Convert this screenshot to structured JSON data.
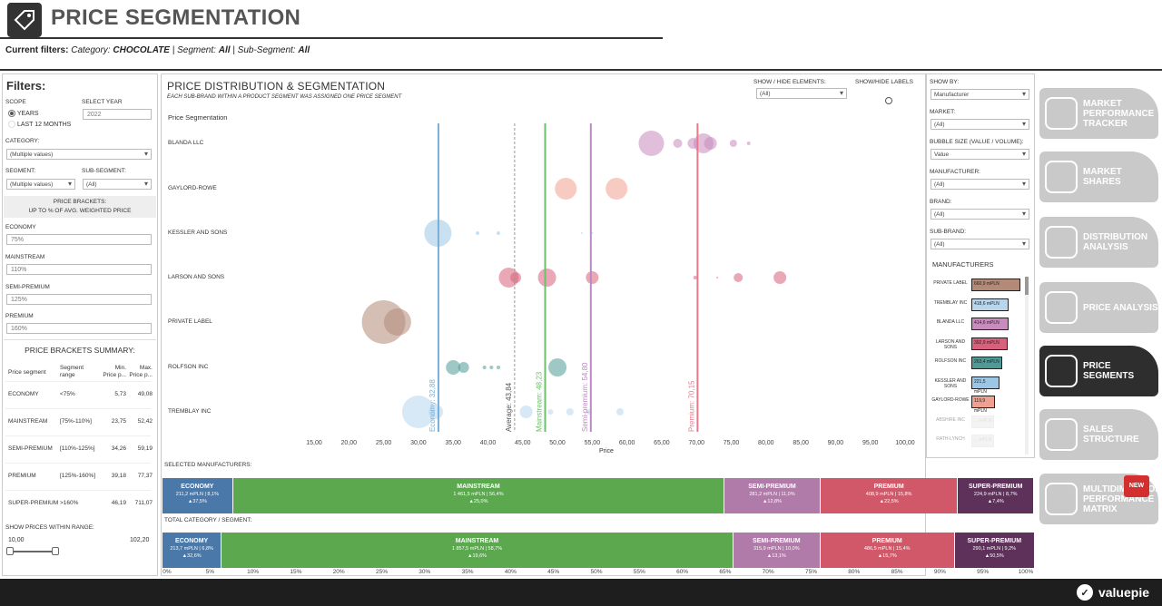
{
  "header": {
    "title": "PRICE SEGMENTATION",
    "filters_prefix": "Current filters:",
    "cat_label": " Category: ",
    "cat_value": "CHOCOLATE",
    "seg_label": " | Segment: ",
    "seg_value": "All",
    "subseg_label": " | Sub-Segment: ",
    "subseg_value": "All"
  },
  "left": {
    "heading": "Filters:",
    "scope_label": "SCOPE",
    "scope_years": "YEARS",
    "scope_l12": "LAST 12 MONTHS",
    "year_label": "SELECT YEAR",
    "year_value": "2022",
    "category_label": "CATEGORY:",
    "category_value": "(Multiple values)",
    "segment_label": "SEGMENT:",
    "segment_value": "(Multiple values)",
    "subsegment_label": "SUB-SEGMENT:",
    "subsegment_value": "(All)",
    "brackets_title": "PRICE BRACKETS:",
    "brackets_sub": "UP TO % OF AVG. WEIGHTED PRICE",
    "economy_label": "ECONOMY",
    "economy_value": "75%",
    "mainstream_label": "MAINSTREAM",
    "mainstream_value": "110%",
    "semipremium_label": "SEMI-PREMIUM",
    "semipremium_value": "125%",
    "premium_label": "PREMIUM",
    "premium_value": "160%",
    "summary_title": "PRICE BRACKETS SUMMARY:",
    "summary_cols": [
      "Price segment",
      "Segment range",
      "Min. Price p...",
      "Max. Price p..."
    ],
    "summary_rows": [
      {
        "seg": "ECONOMY",
        "range": "<75%",
        "min": "5,73",
        "max": "49,08"
      },
      {
        "seg": "MAINSTREAM",
        "range": "[75%-110%]",
        "min": "23,75",
        "max": "52,42"
      },
      {
        "seg": "SEMI-PREMIUM",
        "range": "[110%-125%]",
        "min": "34,26",
        "max": "59,19"
      },
      {
        "seg": "PREMIUM",
        "range": "[125%-160%]",
        "min": "39,18",
        "max": "77,37"
      },
      {
        "seg": "SUPER-PREMIUM",
        "range": ">160%",
        "min": "46,19",
        "max": "711,07"
      }
    ],
    "range_label": "SHOW PRICES WITHIN RANGE:",
    "range_min": "10,00",
    "range_max": "102,20"
  },
  "chart": {
    "title": "PRICE DISTRIBUTION & SEGMENTATION",
    "subtitle": "EACH SUB-BRAND WITHIN A PRODUCT SEGMENT WAS ASSIGNED ONE PRICE SEGMENT",
    "ps_label": "Price Segmentation",
    "show_hide_label": "SHOW / HIDE ELEMENTS:",
    "show_hide_value": "(All)",
    "show_hide_labels": "SHOW/HIDE LABELS",
    "xlabel": "Price"
  },
  "chart_data": {
    "type": "scatter",
    "xlabel": "Price",
    "xlim": [
      12,
      102
    ],
    "x_ticks": [
      "15,00",
      "20,00",
      "25,00",
      "30,00",
      "35,00",
      "40,00",
      "45,00",
      "50,00",
      "55,00",
      "60,00",
      "65,00",
      "70,00",
      "75,00",
      "80,00",
      "85,00",
      "90,00",
      "95,00",
      "100,00"
    ],
    "x_tick_values": [
      15,
      20,
      25,
      30,
      35,
      40,
      45,
      50,
      55,
      60,
      65,
      70,
      75,
      80,
      85,
      90,
      95,
      100
    ],
    "categories": [
      "BLANDA LLC",
      "GAYLORD-ROWE",
      "KESSLER AND SONS",
      "LARSON AND SONS",
      "PRIVATE LABEL",
      "ROLFSON INC",
      "TREMBLAY INC"
    ],
    "reference_lines": [
      {
        "label": "Economy: 32,88",
        "x": 32.88,
        "color": "#7aaed6"
      },
      {
        "label": "Average: 43,84",
        "x": 43.84,
        "color": "#999999"
      },
      {
        "label": "Mainstream: 48,23",
        "x": 48.23,
        "color": "#6cc06c"
      },
      {
        "label": "Semi-premium: 54,80",
        "x": 54.8,
        "color": "#b98bc0"
      },
      {
        "label": "Premium: 70,15",
        "x": 70.15,
        "color": "#e8798c"
      }
    ],
    "series": [
      {
        "manufacturer": "BLANDA LLC",
        "color": "#c98bbd",
        "points": [
          [
            63.5,
            14
          ],
          [
            67.3,
            5
          ],
          [
            69.5,
            6
          ],
          [
            71,
            11
          ],
          [
            72,
            7
          ],
          [
            75.3,
            4
          ],
          [
            77.5,
            2
          ]
        ]
      },
      {
        "manufacturer": "GAYLORD-ROWE",
        "color": "#f0a090",
        "points": [
          [
            51.2,
            12
          ],
          [
            58.5,
            12
          ]
        ]
      },
      {
        "manufacturer": "KESSLER AND SONS",
        "color": "#9cc6e6",
        "points": [
          [
            32.8,
            15
          ],
          [
            38.5,
            2
          ],
          [
            41.5,
            2
          ],
          [
            53.5,
            1
          ],
          [
            55,
            1
          ]
        ]
      },
      {
        "manufacturer": "LARSON AND SONS",
        "color": "#d9607a",
        "points": [
          [
            43,
            11
          ],
          [
            44,
            6
          ],
          [
            48.5,
            10
          ],
          [
            55,
            7
          ],
          [
            69.8,
            2
          ],
          [
            73,
            1
          ],
          [
            76,
            5
          ],
          [
            82,
            7
          ]
        ]
      },
      {
        "manufacturer": "PRIVATE LABEL",
        "color": "#b38a78",
        "points": [
          [
            25,
            24
          ],
          [
            27,
            15
          ]
        ]
      },
      {
        "manufacturer": "ROLFSON INC",
        "color": "#4f9a97",
        "points": [
          [
            35,
            8
          ],
          [
            36.5,
            6
          ],
          [
            39.5,
            2
          ],
          [
            40.5,
            2
          ],
          [
            41.5,
            2
          ],
          [
            50,
            10
          ]
        ]
      },
      {
        "manufacturer": "TREMBLAY INC",
        "color": "#b7d6ee",
        "points": [
          [
            30,
            18
          ],
          [
            32.5,
            8
          ],
          [
            45.5,
            7
          ],
          [
            49,
            3
          ],
          [
            51.8,
            4
          ],
          [
            54.5,
            3
          ],
          [
            59,
            4
          ]
        ]
      }
    ]
  },
  "selected_bar": {
    "label": "SELECTED MANUFACTURERS:",
    "segments": [
      {
        "name": "ECONOMY",
        "detail": "211,2 mPLN | 8,1%",
        "growth": "▲37,5%",
        "share": 8.1,
        "color": "#4a78a8"
      },
      {
        "name": "MAINSTREAM",
        "detail": "1 461,5 mPLN | 56,4%",
        "growth": "▲25,0%",
        "share": 56.4,
        "color": "#5ba84f"
      },
      {
        "name": "SEMI-PREMIUM",
        "detail": "281,2 mPLN | 11,0%",
        "growth": "▲12,8%",
        "share": 11.0,
        "color": "#b07aa9"
      },
      {
        "name": "PREMIUM",
        "detail": "408,9 mPLN | 15,8%",
        "growth": "▲22,5%",
        "share": 15.8,
        "color": "#d05869"
      },
      {
        "name": "SUPER-PREMIUM",
        "detail": "224,9 mPLN | 8,7%",
        "growth": "▲7,4%",
        "share": 8.7,
        "color": "#5d3159"
      }
    ]
  },
  "total_bar": {
    "label": "TOTAL CATEGORY / SEGMENT:",
    "segments": [
      {
        "name": "ECONOMY",
        "detail": "213,7 mPLN | 6,8%",
        "growth": "▲32,6%",
        "share": 6.8,
        "color": "#4a78a8"
      },
      {
        "name": "MAINSTREAM",
        "detail": "1 857,5 mPLN | 58,7%",
        "growth": "▲19,6%",
        "share": 58.7,
        "color": "#5ba84f"
      },
      {
        "name": "SEMI-PREMIUM",
        "detail": "315,9 mPLN | 10,0%",
        "growth": "▲13,1%",
        "share": 10.0,
        "color": "#b07aa9"
      },
      {
        "name": "PREMIUM",
        "detail": "486,5 mPLN | 15,4%",
        "growth": "▲15,7%",
        "share": 15.4,
        "color": "#d05869"
      },
      {
        "name": "SUPER-PREMIUM",
        "detail": "290,1 mPLN | 9,2%",
        "growth": "▲50,5%",
        "share": 9.2,
        "color": "#5d3159"
      }
    ]
  },
  "pct_ticks": [
    "0%",
    "5%",
    "10%",
    "15%",
    "20%",
    "25%",
    "30%",
    "35%",
    "40%",
    "45%",
    "50%",
    "55%",
    "60%",
    "65%",
    "70%",
    "75%",
    "80%",
    "85%",
    "90%",
    "95%",
    "100%"
  ],
  "right": {
    "show_by_label": "SHOW BY:",
    "show_by_value": "Manufacturer",
    "market_label": "MARKET:",
    "market_value": "(All)",
    "bubble_label": "BUBBLE SIZE (VALUE / VOLUME):",
    "bubble_value": "Value",
    "manufacturer_label": "MANUFACTURER:",
    "manufacturer_value": "(All)",
    "brand_label": "BRAND:",
    "brand_value": "(All)",
    "subbrand_label": "SUB-BRAND:",
    "subbrand_value": "(All)",
    "manufacturers_title": "MANUFACTURERS",
    "manufacturers": [
      {
        "name": "PRIVATE LABEL",
        "value": "660,9 mPLN",
        "share": 1.0,
        "color": "#b38a78"
      },
      {
        "name": "TREMBLAY INC",
        "value": "418,6 mPLN",
        "share": 0.63,
        "color": "#b7d6ee"
      },
      {
        "name": "BLANDA LLC",
        "value": "414,6 mPLN",
        "share": 0.63,
        "color": "#c98bbd"
      },
      {
        "name": "LARSON AND SONS",
        "value": "392,9 mPLN",
        "share": 0.59,
        "color": "#d9607a"
      },
      {
        "name": "ROLFSON INC",
        "value": "263,4 mPLN",
        "share": 0.4,
        "color": "#4f9a97"
      },
      {
        "name": "KESSLER AND SONS",
        "value": "221,5 mPLN",
        "share": 0.33,
        "color": "#9cc6e6"
      },
      {
        "name": "GAYLORD-ROWE",
        "value": "119,9 mPLN",
        "share": 0.18,
        "color": "#f0a090"
      },
      {
        "name": "ABSHIRE INC",
        "value": "... mPLN",
        "share": 0.15,
        "color": "#e6e6e6"
      },
      {
        "name": "RATH-LYNCH",
        "value": "... mPLN",
        "share": 0.15,
        "color": "#e6e6e6"
      }
    ]
  },
  "nav": [
    {
      "label": "MARKET PERFORMANCE TRACKER",
      "icon": "target-icon",
      "active": false
    },
    {
      "label": "MARKET SHARES",
      "icon": "pie-icon",
      "active": false
    },
    {
      "label": "DISTRIBUTION ANALYSIS",
      "icon": "network-icon",
      "active": false
    },
    {
      "label": "PRICE ANALYSIS",
      "icon": "price-tag-icon",
      "active": false
    },
    {
      "label": "PRICE SEGMENTS",
      "icon": "price-segment-icon",
      "active": true
    },
    {
      "label": "SALES STRUCTURE",
      "icon": "layers-icon",
      "active": false
    },
    {
      "label": "MULTIDIMENSIONAL PERFORMANCE MATRIX",
      "icon": "matrix-icon",
      "active": false
    }
  ],
  "new_badge": "NEW",
  "brand": "valuepie"
}
